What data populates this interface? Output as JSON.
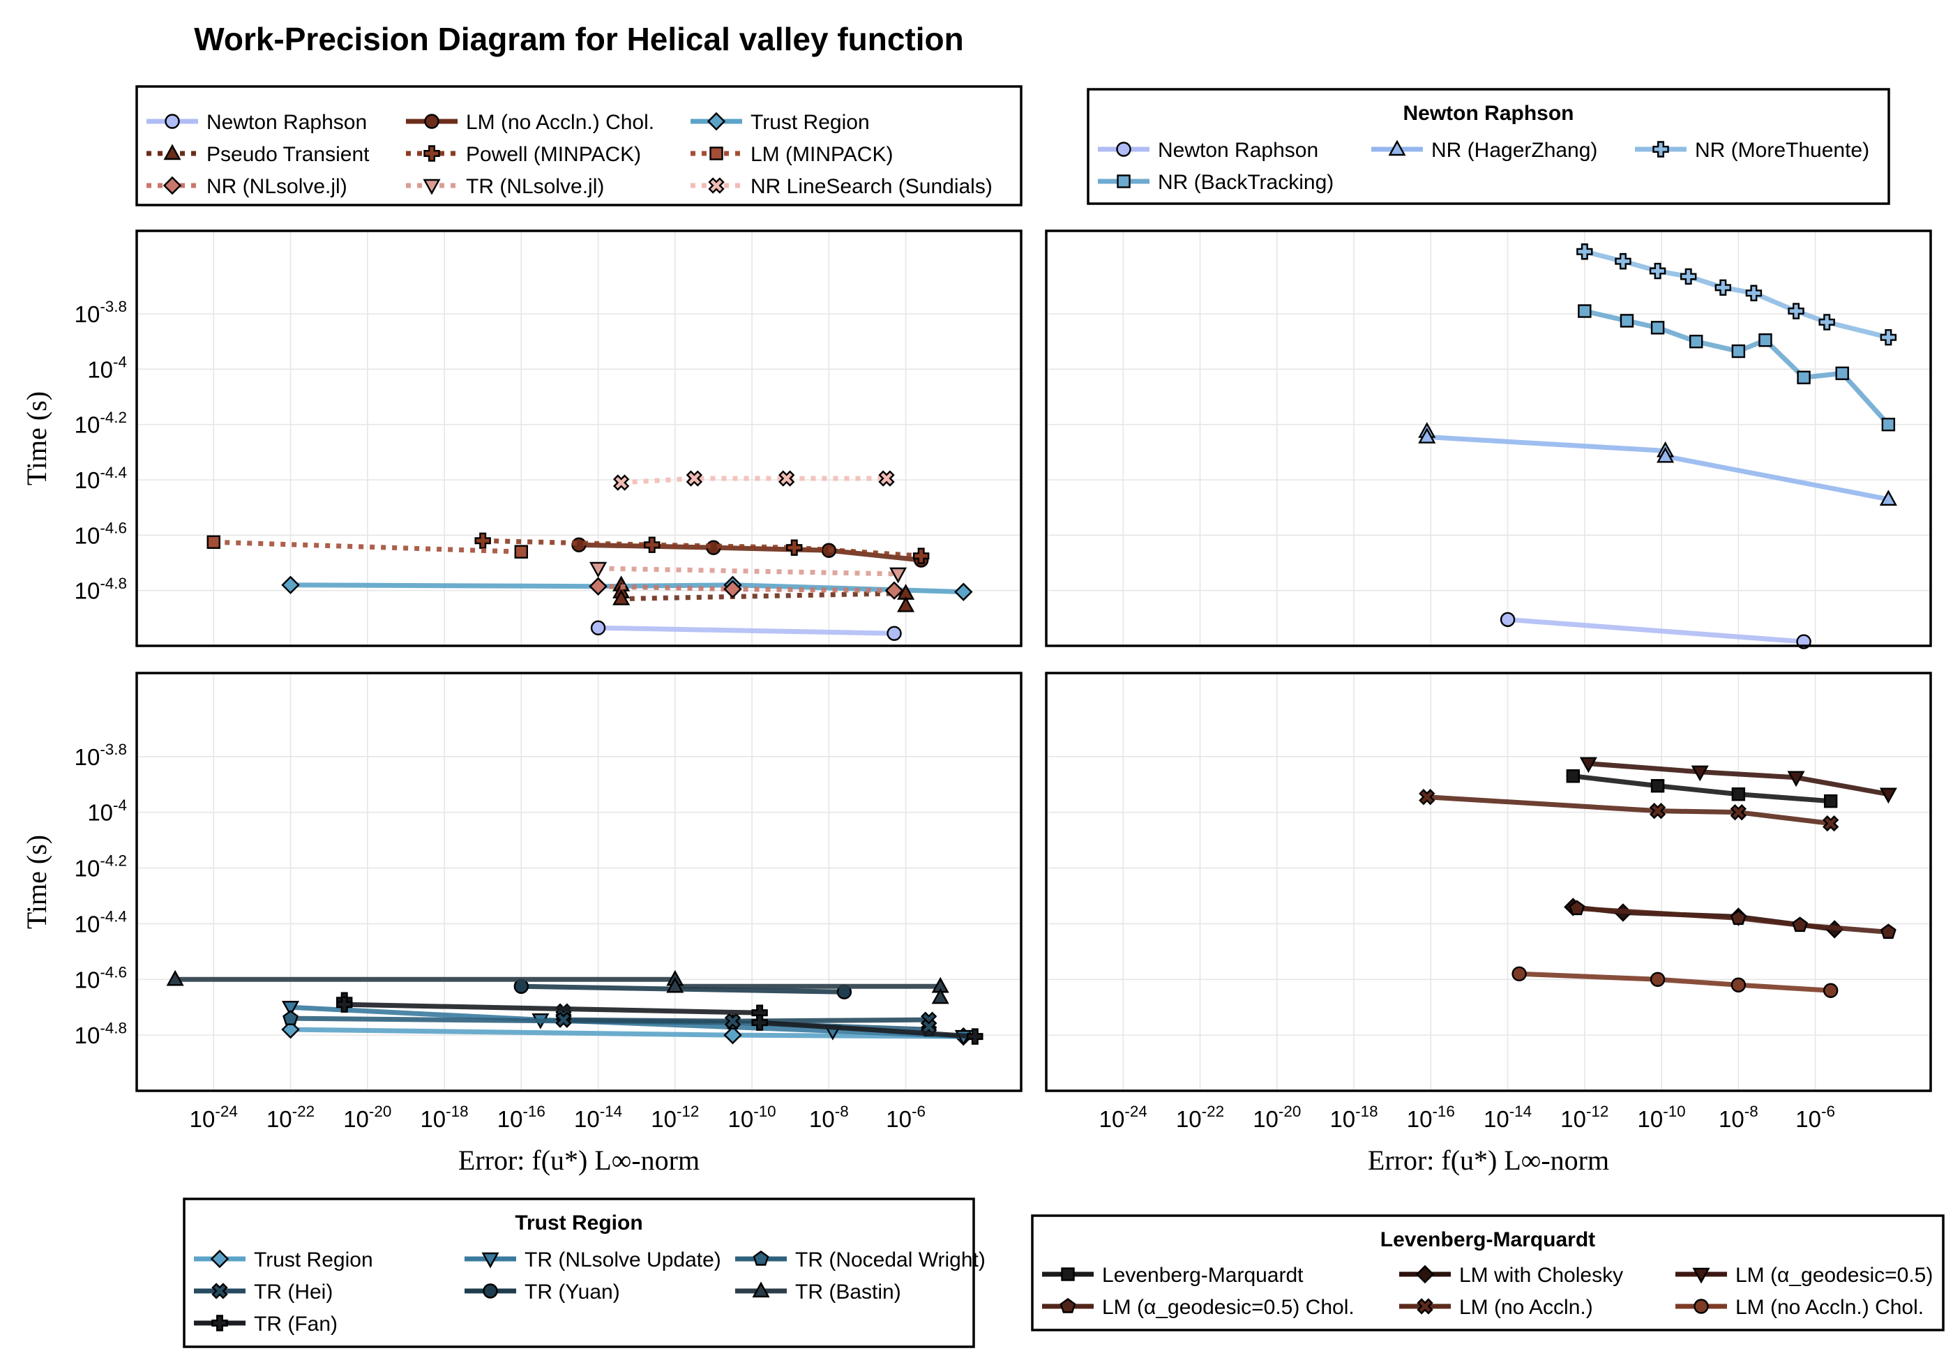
{
  "chart_data": {
    "type": "line",
    "title": "Work-Precision Diagram for Helical valley function",
    "xlabel": "Error: f(u*) L∞-norm",
    "ylabel": "Time (s)",
    "xscale": "log10",
    "yscale": "log10",
    "xlim_log10": [
      -26,
      -3
    ],
    "ylim_log10": [
      -5.0,
      -3.5
    ],
    "x_ticks": [
      "10-24",
      "10-22",
      "10-20",
      "10-18",
      "10-16",
      "10-14",
      "10-12",
      "10-10",
      "10-8",
      "10-6"
    ],
    "y_ticks": [
      "10-3.8",
      "10-4",
      "10-4.2",
      "10-4.4",
      "10-4.6",
      "10-4.8"
    ],
    "grid": true,
    "panels": [
      {
        "id": "top-left",
        "legend": {
          "title": "",
          "entries": [
            "Newton Raphson",
            "LM (no Accln.) Chol.",
            "Trust Region",
            "Pseudo Transient",
            "Powell (MINPACK)",
            "LM (MINPACK)",
            "NR (NLsolve.jl)",
            "TR (NLsolve.jl)",
            "NR LineSearch (Sundials)"
          ]
        },
        "series": [
          {
            "name": "Newton Raphson",
            "color": "#b0bcf5",
            "marker": "circle",
            "dash": "solid",
            "x": [
              -14,
              -6.3
            ],
            "y": [
              -4.935,
              -4.955
            ]
          },
          {
            "name": "LM (no Accln.) Chol.",
            "color": "#6b2d1a",
            "marker": "circle",
            "dash": "solid",
            "x": [
              -14.5,
              -11,
              -8,
              -5.6
            ],
            "y": [
              -4.635,
              -4.645,
              -4.655,
              -4.69
            ]
          },
          {
            "name": "Trust Region",
            "color": "#5ba3c8",
            "marker": "diamond",
            "dash": "solid",
            "x": [
              -22,
              -14,
              -10.5,
              -4.5
            ],
            "y": [
              -4.78,
              -4.785,
              -4.78,
              -4.805
            ]
          },
          {
            "name": "Pseudo Transient",
            "color": "#6b2d1a",
            "marker": "triangle-up",
            "dash": "dotted",
            "x": [
              -13.4,
              -13.4,
              -13.4,
              -6,
              -6
            ],
            "y": [
              -4.78,
              -4.805,
              -4.83,
              -4.81,
              -4.855
            ]
          },
          {
            "name": "Powell (MINPACK)",
            "color": "#8a3c22",
            "marker": "plus",
            "dash": "dotted",
            "x": [
              -17,
              -12.6,
              -8.9,
              -5.6
            ],
            "y": [
              -4.62,
              -4.635,
              -4.645,
              -4.675
            ]
          },
          {
            "name": "LM (MINPACK)",
            "color": "#a34f37",
            "marker": "square",
            "dash": "dotted",
            "x": [
              -24,
              -16
            ],
            "y": [
              -4.625,
              -4.66
            ]
          },
          {
            "name": "NR (NLsolve.jl)",
            "color": "#c8776a",
            "marker": "diamond",
            "dash": "dotted",
            "x": [
              -14,
              -10.5,
              -6.3
            ],
            "y": [
              -4.785,
              -4.795,
              -4.8
            ]
          },
          {
            "name": "TR (NLsolve.jl)",
            "color": "#db9c94",
            "marker": "triangle-down",
            "dash": "dotted",
            "x": [
              -14,
              -6.2
            ],
            "y": [
              -4.72,
              -4.74
            ]
          },
          {
            "name": "NR LineSearch (Sundials)",
            "color": "#f2bcb6",
            "marker": "x-cross",
            "dash": "dotted",
            "x": [
              -13.4,
              -11.5,
              -9.1,
              -6.5
            ],
            "y": [
              -4.41,
              -4.395,
              -4.395,
              -4.395
            ]
          }
        ]
      },
      {
        "id": "top-right",
        "legend": {
          "title": "Newton Raphson",
          "entries": [
            "Newton Raphson",
            "NR (HagerZhang)",
            "NR (MoreThuente)",
            "NR (BackTracking)"
          ]
        },
        "series": [
          {
            "name": "Newton Raphson",
            "color": "#b0bcf5",
            "marker": "circle",
            "dash": "solid",
            "x": [
              -14,
              -6.3
            ],
            "y": [
              -4.905,
              -4.985
            ]
          },
          {
            "name": "NR (HagerZhang)",
            "color": "#95b7ee",
            "marker": "triangle-up",
            "dash": "solid",
            "x": [
              -16.1,
              -16.1,
              -9.9,
              -9.9,
              -4.1
            ],
            "y": [
              -4.225,
              -4.245,
              -4.295,
              -4.315,
              -4.47
            ]
          },
          {
            "name": "NR (MoreThuente)",
            "color": "#8fbce4",
            "marker": "plus",
            "dash": "solid",
            "x": [
              -12,
              -11,
              -10.1,
              -9.3,
              -8.4,
              -7.6,
              -6.5,
              -5.7,
              -4.1
            ],
            "y": [
              -3.575,
              -3.61,
              -3.645,
              -3.665,
              -3.705,
              -3.725,
              -3.79,
              -3.83,
              -3.885
            ]
          },
          {
            "name": "NR (BackTracking)",
            "color": "#6daad0",
            "marker": "square",
            "dash": "solid",
            "x": [
              -12,
              -10.9,
              -10.1,
              -9.1,
              -8,
              -7.3,
              -6.3,
              -5.3,
              -4.1
            ],
            "y": [
              -3.79,
              -3.825,
              -3.85,
              -3.9,
              -3.935,
              -3.895,
              -4.03,
              -4.015,
              -4.2
            ]
          }
        ]
      },
      {
        "id": "bottom-left",
        "legend": {
          "title": "Trust Region",
          "entries": [
            "Trust Region",
            "TR (NLsolve Update)",
            "TR (Nocedal Wright)",
            "TR (Hei)",
            "TR (Yuan)",
            "TR (Bastin)",
            "TR (Fan)"
          ]
        },
        "series": [
          {
            "name": "Trust Region",
            "color": "#5ba3c8",
            "marker": "diamond",
            "dash": "solid",
            "x": [
              -22,
              -10.5,
              -4.5
            ],
            "y": [
              -4.78,
              -4.8,
              -4.805
            ]
          },
          {
            "name": "TR (NLsolve Update)",
            "color": "#3a7a9e",
            "marker": "triangle-down",
            "dash": "solid",
            "x": [
              -22,
              -15.5,
              -7.9,
              -4.5
            ],
            "y": [
              -4.7,
              -4.745,
              -4.785,
              -4.805
            ]
          },
          {
            "name": "TR (Nocedal Wright)",
            "color": "#2d617d",
            "marker": "pentagon",
            "dash": "solid",
            "x": [
              -22,
              -10.5,
              -5.4
            ],
            "y": [
              -4.74,
              -4.755,
              -4.78
            ]
          },
          {
            "name": "TR (Hei)",
            "color": "#264a5f",
            "marker": "x-cross",
            "dash": "solid",
            "x": [
              -14.9,
              -14.9,
              -14.9,
              -10.5,
              -5.4,
              -5.4
            ],
            "y": [
              -4.715,
              -4.73,
              -4.745,
              -4.75,
              -4.745,
              -4.77
            ]
          },
          {
            "name": "TR (Yuan)",
            "color": "#1f3d4e",
            "marker": "circle",
            "dash": "solid",
            "x": [
              -16,
              -7.6
            ],
            "y": [
              -4.625,
              -4.645
            ]
          },
          {
            "name": "TR (Bastin)",
            "color": "#2b3d49",
            "marker": "triangle-up",
            "dash": "solid",
            "x": [
              -25,
              -12,
              -12,
              -5.1,
              -5.1
            ],
            "y": [
              -4.6,
              -4.6,
              -4.625,
              -4.625,
              -4.665
            ]
          },
          {
            "name": "TR (Fan)",
            "color": "#1a1d21",
            "marker": "plus",
            "dash": "solid",
            "x": [
              -20.6,
              -20.6,
              -9.8,
              -9.8,
              -4.2
            ],
            "y": [
              -4.675,
              -4.69,
              -4.72,
              -4.755,
              -4.805
            ]
          }
        ]
      },
      {
        "id": "bottom-right",
        "legend": {
          "title": "Levenberg-Marquardt",
          "entries": [
            "Levenberg-Marquardt",
            "LM with Cholesky",
            "LM (α_geodesic=0.5)",
            "LM (α_geodesic=0.5) Chol.",
            "LM (no Accln.)",
            "LM (no Accln.) Chol."
          ]
        },
        "series": [
          {
            "name": "Levenberg-Marquardt",
            "color": "#1a1a1a",
            "marker": "square",
            "dash": "solid",
            "x": [
              -12.3,
              -10.1,
              -8,
              -5.6
            ],
            "y": [
              -3.87,
              -3.905,
              -3.935,
              -3.96
            ]
          },
          {
            "name": "LM with Cholesky",
            "color": "#2a120d",
            "marker": "diamond",
            "dash": "solid",
            "x": [
              -12.3,
              -11,
              -8,
              -5.5
            ],
            "y": [
              -4.34,
              -4.36,
              -4.375,
              -4.42
            ]
          },
          {
            "name": "LM (α_geodesic=0.5)",
            "color": "#3d1812",
            "marker": "triangle-down",
            "dash": "solid",
            "x": [
              -11.9,
              -9,
              -6.5,
              -4.1
            ],
            "y": [
              -3.825,
              -3.855,
              -3.875,
              -3.935
            ]
          },
          {
            "name": "LM (α_geodesic=0.5) Chol.",
            "color": "#51241a",
            "marker": "pentagon",
            "dash": "solid",
            "x": [
              -12.2,
              -8,
              -6.4,
              -4.1
            ],
            "y": [
              -4.345,
              -4.38,
              -4.405,
              -4.43
            ]
          },
          {
            "name": "LM (no Accln.)",
            "color": "#5c2a1c",
            "marker": "x-cross",
            "dash": "solid",
            "x": [
              -16.1,
              -10.1,
              -8,
              -5.6
            ],
            "y": [
              -3.945,
              -3.995,
              -4.0,
              -4.04
            ]
          },
          {
            "name": "LM (no Accln.) Chol.",
            "color": "#7c3b26",
            "marker": "circle",
            "dash": "solid",
            "x": [
              -13.7,
              -10.1,
              -8,
              -5.6
            ],
            "y": [
              -4.58,
              -4.6,
              -4.62,
              -4.64
            ]
          }
        ]
      }
    ]
  }
}
